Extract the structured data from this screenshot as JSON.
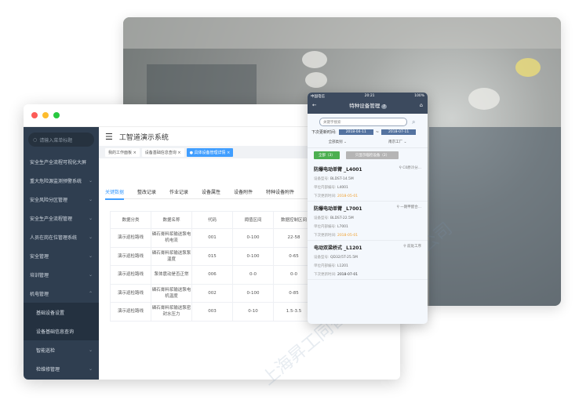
{
  "desktop": {
    "search_placeholder": "请输入菜单标题",
    "title": "工智道演示系统",
    "sidebar": [
      {
        "label": "安全生产全流程可视化大屏"
      },
      {
        "label": "重大危险源监测预警系统"
      },
      {
        "label": "安全风险分区管理"
      },
      {
        "label": "安全生产全流程管理"
      },
      {
        "label": "人员在岗在位管理系统"
      },
      {
        "label": "安全管理"
      },
      {
        "label": "培训管理"
      },
      {
        "label": "机电管理"
      },
      {
        "label": "基础设备设置"
      },
      {
        "label": "设备基础信息查询"
      },
      {
        "label": "智能巡检"
      },
      {
        "label": "检维修管理"
      }
    ],
    "open_tabs": [
      {
        "label": "我的工作面板"
      },
      {
        "label": "设备基础信息查询"
      },
      {
        "label": "具体设备管理详情"
      }
    ],
    "content_tabs": [
      "关键数据",
      "整改记录",
      "作业记录",
      "设备属性",
      "设备附件",
      "特种设备附件"
    ],
    "table": {
      "headers": [
        "数据分类",
        "数据名称",
        "代码",
        "阈值区间",
        "数据控制区间"
      ],
      "rows": [
        [
          "演示巡检路线",
          "磷石膏料浆输送泵电机电流",
          "001",
          "0-100",
          "22-58"
        ],
        [
          "演示巡检路线",
          "磷石膏料浆输送泵泵温度",
          "015",
          "0-100",
          "0-65"
        ],
        [
          "演示巡检路线",
          "泵体震动是否正常",
          "006",
          "0-0",
          "0-0"
        ],
        [
          "演示巡检路线",
          "磷石膏料浆输送泵电机温度",
          "002",
          "0-100",
          "0-85"
        ],
        [
          "演示巡检路线",
          "磷石膏料浆输送泵密封水压力",
          "003",
          "0-10",
          "1.5-3.5"
        ]
      ]
    },
    "watermark": "上海昇工同智信息科技有限公司"
  },
  "mobile": {
    "carrier": "中国电信",
    "time": "20:21",
    "battery": "100%",
    "title": "特种设备管理",
    "help": "?",
    "search_placeholder": "关键字搜索",
    "date_label": "下次更新时间:",
    "date_from": "2018-04-11",
    "date_sep": "~",
    "date_to": "2018-07-11",
    "filter_type": "全部类别",
    "filter_plant": "南京工厂",
    "chip_all": "全部（3）",
    "chip_near": "只显示临检设备（2）",
    "cards": [
      {
        "name": "防爆电动单臂 _L4001",
        "location": "C0原冷分...",
        "model_label": "设备型号:",
        "model": "BLDST-14.5M",
        "code_label": "单位内部编号:",
        "code": "L4001",
        "date_label": "下次更新时间:",
        "date": "2018-05-01"
      },
      {
        "name": "防爆电动单臂 _L7001",
        "location": "一期甲醛合...",
        "model_label": "设备型号:",
        "model": "BLDST-22.5M",
        "code_label": "单位内部编号:",
        "code": "L7001",
        "date_label": "下次更新时间:",
        "date": "2018-05-01"
      },
      {
        "name": "电动双梁桥式 _L1201",
        "location": "前处工序",
        "model_label": "设备型号:",
        "model": "QD32/5T-25.5M",
        "code_label": "单位内部编号:",
        "code": "L1201",
        "date_label": "下次更新时间:",
        "date": "2018-07-01"
      }
    ]
  },
  "colors": {
    "sidebar": "#2f3e50",
    "accent": "#409eff",
    "mobile_header": "#3c4a5e",
    "chip_green": "#4caf50",
    "date_orange": "#f0a030"
  }
}
